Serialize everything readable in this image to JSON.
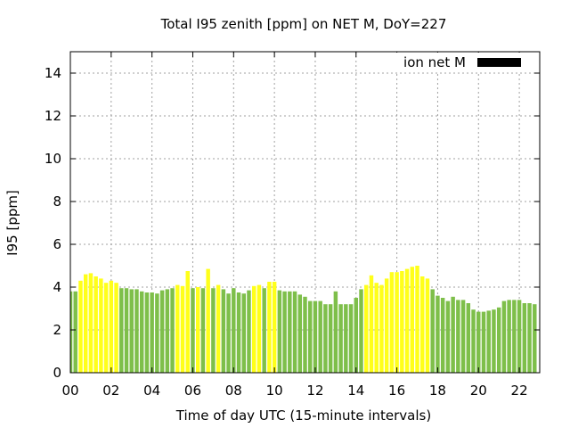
{
  "chart_data": {
    "type": "bar",
    "title": "Total I95 zenith [ppm] on NET M, DoY=227",
    "xlabel": "Time of day UTC (15-minute intervals)",
    "ylabel": "I95 [ppm]",
    "xlim": [
      0,
      23
    ],
    "ylim": [
      0,
      15
    ],
    "x_ticks": [
      {
        "value": 0,
        "label": "00"
      },
      {
        "value": 2,
        "label": "02"
      },
      {
        "value": 4,
        "label": "04"
      },
      {
        "value": 6,
        "label": "06"
      },
      {
        "value": 8,
        "label": "08"
      },
      {
        "value": 10,
        "label": "10"
      },
      {
        "value": 12,
        "label": "12"
      },
      {
        "value": 14,
        "label": "14"
      },
      {
        "value": 16,
        "label": "16"
      },
      {
        "value": 18,
        "label": "18"
      },
      {
        "value": 20,
        "label": "20"
      },
      {
        "value": 22,
        "label": "22"
      }
    ],
    "y_ticks": [
      {
        "value": 0,
        "label": "0"
      },
      {
        "value": 2,
        "label": "2"
      },
      {
        "value": 4,
        "label": "4"
      },
      {
        "value": 6,
        "label": "6"
      },
      {
        "value": 8,
        "label": "8"
      },
      {
        "value": 10,
        "label": "10"
      },
      {
        "value": 12,
        "label": "12"
      },
      {
        "value": 14,
        "label": "14"
      }
    ],
    "grid": true,
    "legend": {
      "position": "top-right",
      "entries": [
        {
          "label": "ion net M",
          "color": "#000000"
        }
      ]
    },
    "colors": {
      "green": "#7ebf4a",
      "yellow": "#ffff1a"
    },
    "series": [
      {
        "name": "ion net M",
        "x_start": 0,
        "x_step": 0.25,
        "values": [
          3.8,
          3.8,
          4.3,
          4.6,
          4.65,
          4.5,
          4.4,
          4.2,
          4.3,
          4.2,
          3.95,
          3.95,
          3.9,
          3.9,
          3.8,
          3.75,
          3.75,
          3.7,
          3.85,
          3.9,
          3.95,
          4.1,
          4.05,
          4.75,
          3.95,
          4.0,
          3.95,
          4.85,
          3.95,
          4.1,
          3.9,
          3.7,
          3.95,
          3.75,
          3.7,
          3.85,
          4.05,
          4.1,
          3.95,
          4.25,
          4.25,
          3.85,
          3.8,
          3.8,
          3.8,
          3.65,
          3.55,
          3.35,
          3.35,
          3.35,
          3.2,
          3.2,
          3.8,
          3.2,
          3.2,
          3.2,
          3.5,
          3.9,
          4.1,
          4.55,
          4.2,
          4.1,
          4.4,
          4.7,
          4.7,
          4.75,
          4.85,
          4.95,
          5.0,
          4.5,
          4.4,
          3.9,
          3.6,
          3.5,
          3.35,
          3.55,
          3.4,
          3.4,
          3.25,
          2.95,
          2.85,
          2.85,
          2.9,
          2.95,
          3.05,
          3.35,
          3.4,
          3.4,
          3.4,
          3.25,
          3.25,
          3.2
        ],
        "colors": [
          "g",
          "g",
          "y",
          "y",
          "y",
          "y",
          "y",
          "y",
          "y",
          "y",
          "g",
          "g",
          "g",
          "g",
          "g",
          "g",
          "g",
          "g",
          "g",
          "g",
          "g",
          "y",
          "y",
          "y",
          "g",
          "y",
          "g",
          "y",
          "g",
          "y",
          "g",
          "g",
          "g",
          "g",
          "g",
          "g",
          "y",
          "y",
          "g",
          "y",
          "y",
          "g",
          "g",
          "g",
          "g",
          "g",
          "g",
          "g",
          "g",
          "g",
          "g",
          "g",
          "g",
          "g",
          "g",
          "g",
          "g",
          "g",
          "y",
          "y",
          "y",
          "y",
          "y",
          "y",
          "y",
          "y",
          "y",
          "y",
          "y",
          "y",
          "y",
          "g",
          "g",
          "g",
          "g",
          "g",
          "g",
          "g",
          "g",
          "g",
          "g",
          "g",
          "g",
          "g",
          "g",
          "g",
          "g",
          "g",
          "g",
          "g",
          "g",
          "g"
        ]
      }
    ]
  }
}
